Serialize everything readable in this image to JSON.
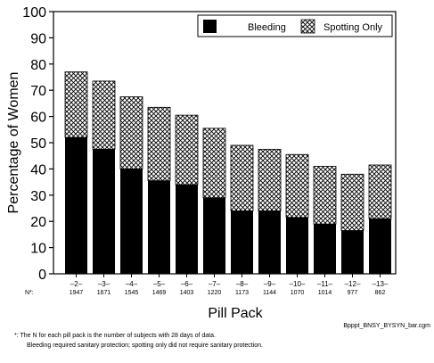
{
  "chart_data": {
    "type": "bar",
    "stacked": true,
    "ylabel": "Percentage of Women",
    "xlabel": "Pill Pack",
    "ylim": [
      0,
      100
    ],
    "yticks": [
      0,
      10,
      20,
      30,
      40,
      50,
      60,
      70,
      80,
      90,
      100
    ],
    "categories": [
      "–2–",
      "–3–",
      "–4–",
      "–5–",
      "–6–",
      "–7–",
      "–8–",
      "–9–",
      "–10–",
      "–11–",
      "–12–",
      "–13–"
    ],
    "n_label": "N*:",
    "n_values": [
      "1947",
      "1671",
      "1545",
      "1469",
      "1403",
      "1220",
      "1173",
      "1144",
      "1070",
      "1014",
      "977",
      "862"
    ],
    "series": [
      {
        "name": "Bleeding",
        "fill": "solid",
        "values": [
          52,
          47.5,
          40,
          35.5,
          34,
          29,
          24,
          24,
          21.5,
          19,
          16.5,
          21
        ]
      },
      {
        "name": "Spotting Only",
        "fill": "crosshatch",
        "values": [
          25,
          26,
          27.5,
          28,
          26.5,
          26.5,
          25,
          23.5,
          24,
          22,
          21.5,
          20.5
        ]
      }
    ],
    "legend_position": "top-right",
    "grid": false
  },
  "footnote": {
    "line1": "*: The N for each pill pack is the number of subjects with 28 days of data.",
    "line2": "Bleeding required sanitary protection; spotting only did not require sanitary protection."
  },
  "filename": "Bpppt_BNSY_BYSYN_bar.cgm",
  "colors": {
    "bleeding": "#000000",
    "spotting_hatch": "#000000",
    "background": "#ffffff"
  }
}
